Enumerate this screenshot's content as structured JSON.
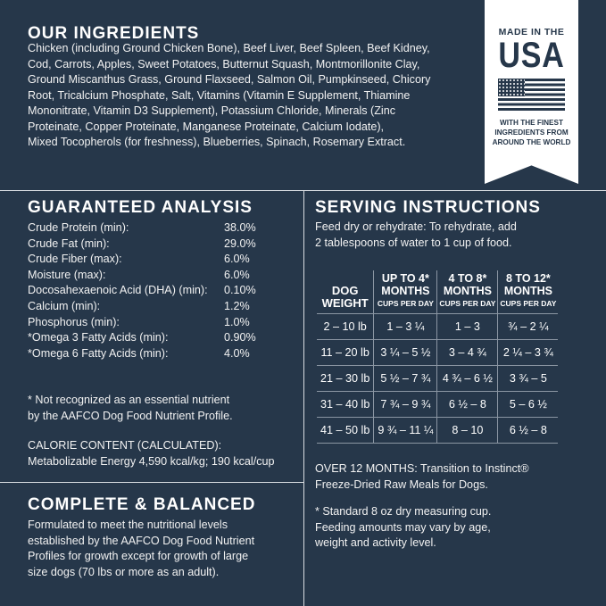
{
  "ingredients": {
    "title": "OUR INGREDIENTS",
    "text": "Chicken (including Ground Chicken Bone), Beef Liver, Beef Spleen, Beef Kidney,\nCod, Carrots, Apples, Sweet Potatoes, Butternut Squash, Montmorillonite Clay,\nGround Miscanthus Grass, Ground Flaxseed, Salmon Oil, Pumpkinseed, Chicory\nRoot, Tricalcium Phosphate, Salt, Vitamins (Vitamin E Supplement, Thiamine\nMononitrate, Vitamin D3 Supplement), Potassium Chloride, Minerals (Zinc\nProteinate, Copper Proteinate, Manganese Proteinate, Calcium Iodate),\nMixed Tocopherols (for freshness), Blueberries, Spinach, Rosemary Extract."
  },
  "badge": {
    "top": "MADE IN THE",
    "usa": "USA",
    "bottom": "WITH THE FINEST\nINGREDIENTS FROM\nAROUND THE WORLD",
    "icon": "us-flag-icon"
  },
  "analysis": {
    "title": "GUARANTEED ANALYSIS",
    "rows": [
      {
        "label": "Crude Protein (min):",
        "value": "38.0%"
      },
      {
        "label": "Crude Fat (min):",
        "value": "29.0%"
      },
      {
        "label": "Crude Fiber (max):",
        "value": "6.0%"
      },
      {
        "label": "Moisture (max):",
        "value": "6.0%"
      },
      {
        "label": "Docosahexaenoic Acid (DHA) (min):",
        "value": "0.10%"
      },
      {
        "label": "Calcium (min):",
        "value": "1.2%"
      },
      {
        "label": "Phosphorus (min):",
        "value": "1.0%"
      },
      {
        "label": "*Omega 3 Fatty Acids (min):",
        "value": "0.90%"
      },
      {
        "label": "*Omega 6 Fatty Acids (min):",
        "value": "4.0%"
      }
    ],
    "note": "* Not recognized as an essential nutrient\n   by the AAFCO Dog Food Nutrient Profile.",
    "calorie_title": "CALORIE CONTENT (CALCULATED):",
    "calorie_value": "Metabolizable Energy 4,590 kcal/kg; 190 kcal/cup"
  },
  "complete": {
    "title": "COMPLETE & BALANCED",
    "text": "Formulated to meet the nutritional levels\nestablished by the AAFCO Dog Food Nutrient\nProfiles for growth except for growth of large\nsize dogs (70 lbs or more as an adult)."
  },
  "serving": {
    "title": "SERVING INSTRUCTIONS",
    "intro": "Feed dry or rehydrate: To rehydrate, add\n2 tablespoons of water to 1 cup of food.",
    "headers": [
      {
        "title": "DOG\nWEIGHT",
        "sub": ""
      },
      {
        "title": "UP TO 4*\nMONTHS",
        "sub": "CUPS PER DAY"
      },
      {
        "title": "4 TO 8*\nMONTHS",
        "sub": "CUPS PER DAY"
      },
      {
        "title": "8 TO 12*\nMONTHS",
        "sub": "CUPS PER DAY"
      }
    ],
    "rows": [
      [
        "2 – 10 lb",
        "1 – 3 ¼",
        "1 – 3",
        "¾ – 2 ¼"
      ],
      [
        "11 – 20 lb",
        "3 ¼ – 5 ½",
        "3 – 4 ¾",
        "2 ¼ – 3 ¾"
      ],
      [
        "21 – 30 lb",
        "5 ½ – 7 ¾",
        "4 ¾ – 6 ½",
        "3 ¾ – 5"
      ],
      [
        "31 – 40 lb",
        "7 ¾ – 9 ¾",
        "6 ½ – 8",
        "5 – 6 ½"
      ],
      [
        "41 – 50 lb",
        "9 ¾ – 11 ¼",
        "8 – 10",
        "6 ½ – 8"
      ]
    ],
    "over12": "OVER 12 MONTHS: Transition to Instinct®\nFreeze-Dried Raw Meals for Dogs.",
    "footnote": "* Standard 8 oz dry measuring cup.\n   Feeding amounts may vary by age,\n   weight and activity level."
  }
}
